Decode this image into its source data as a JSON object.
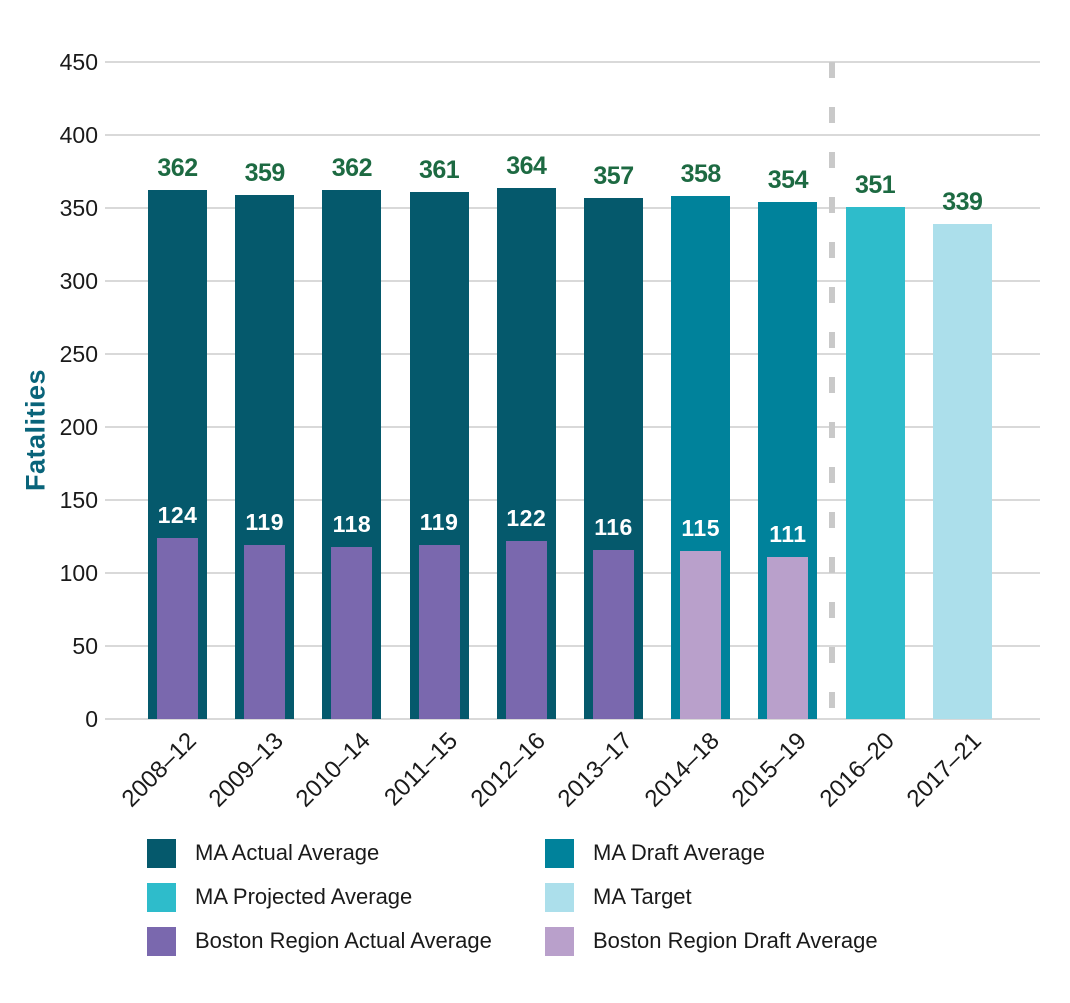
{
  "colors": {
    "ma_actual": "#05596c",
    "ma_draft": "#00829b",
    "ma_projected": "#2ebccb",
    "ma_target": "#acdfeb",
    "boston_actual": "#7a68ae",
    "boston_draft": "#b9a0cb",
    "value_label_green": "#1d6a42",
    "inner_label_white": "#ffffff",
    "gridline": "#d9d9d9",
    "divider": "#c9c9c9",
    "axis_text": "#1a1a1a",
    "y_axis_label_teal": "#09647a"
  },
  "chart_data": {
    "type": "bar",
    "title": "",
    "xlabel": "",
    "ylabel": "Fatalities",
    "ylim": [
      0,
      450
    ],
    "yticks": [
      0,
      50,
      100,
      150,
      200,
      250,
      300,
      350,
      400,
      450
    ],
    "grid": "horizontal",
    "legend_position": "bottom",
    "categories": [
      "2008–12",
      "2009–13",
      "2010–14",
      "2011–15",
      "2012–16",
      "2013–17",
      "2014–18",
      "2015–19",
      "2016–20",
      "2017–21"
    ],
    "divider_after": "2015–19",
    "series": [
      {
        "name": "MA Average",
        "values": [
          362,
          359,
          362,
          361,
          364,
          357,
          358,
          354,
          351,
          339
        ],
        "styles": [
          "ma_actual",
          "ma_actual",
          "ma_actual",
          "ma_actual",
          "ma_actual",
          "ma_actual",
          "ma_draft",
          "ma_draft",
          "ma_projected",
          "ma_target"
        ]
      },
      {
        "name": "Boston Region Average",
        "values": [
          124,
          119,
          118,
          119,
          122,
          116,
          115,
          111,
          null,
          null
        ],
        "styles": [
          "boston_actual",
          "boston_actual",
          "boston_actual",
          "boston_actual",
          "boston_actual",
          "boston_actual",
          "boston_draft",
          "boston_draft",
          null,
          null
        ]
      }
    ]
  },
  "legend": {
    "columns": [
      {
        "items": [
          {
            "label": "MA Actual Average",
            "color_key": "ma_actual"
          },
          {
            "label": "MA Projected Average",
            "color_key": "ma_projected"
          },
          {
            "label": "Boston Region Actual Average",
            "color_key": "boston_actual"
          }
        ]
      },
      {
        "items": [
          {
            "label": "MA Draft Average",
            "color_key": "ma_draft"
          },
          {
            "label": "MA Target",
            "color_key": "ma_target"
          },
          {
            "label": "Boston Region Draft Average",
            "color_key": "boston_draft"
          }
        ]
      }
    ]
  }
}
